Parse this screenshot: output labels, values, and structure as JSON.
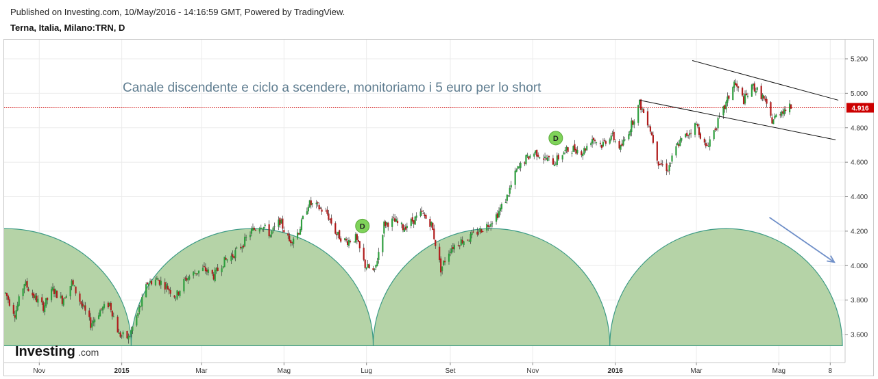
{
  "header": {
    "published": "Published on Investing.com, 10/May/2016 - 14:16:59 GMT, Powered by TradingView.",
    "symbol": "Terna, Italia, Milano:TRN, D"
  },
  "annotation": "Canale discendente e ciclo a scendere, monitoriamo i 5 euro per lo short",
  "logo": {
    "main": "Investing",
    "suffix": ".com"
  },
  "colors": {
    "up": "#2e9e3e",
    "down": "#b01c1c",
    "cycle_fill": "#b5d3a7",
    "cycle_stroke": "#3b9a84",
    "price_line": "#cc0000",
    "arrow": "#6f8fc8",
    "marker": "#7fd35a"
  },
  "chart_data": {
    "type": "candlestick",
    "title": "Terna, Italia, Milano:TRN, D",
    "last_price": "4.916",
    "y_ticks": [
      "5.200",
      "5.000",
      "4.800",
      "4.600",
      "4.400",
      "4.200",
      "4.000",
      "3.800",
      "3.600"
    ],
    "ylim": [
      3.52,
      5.28
    ],
    "x_ticks": [
      {
        "label": "Nov",
        "date": "2014-11-01"
      },
      {
        "label": "2015",
        "date": "2015-01-01"
      },
      {
        "label": "Mar",
        "date": "2015-03-01"
      },
      {
        "label": "Mag",
        "date": "2015-05-01"
      },
      {
        "label": "Lug",
        "date": "2015-07-01"
      },
      {
        "label": "Set",
        "date": "2015-09-01"
      },
      {
        "label": "Nov",
        "date": "2015-11-01"
      },
      {
        "label": "2016",
        "date": "2016-01-01"
      },
      {
        "label": "Mar",
        "date": "2016-03-01"
      },
      {
        "label": "Mag",
        "date": "2016-05-01"
      },
      {
        "label": "8",
        "date": "2016-06-08"
      }
    ],
    "price_path": [
      [
        "2014-10-07",
        3.84
      ],
      [
        "2014-10-14",
        3.72
      ],
      [
        "2014-10-21",
        3.9
      ],
      [
        "2014-10-28",
        3.82
      ],
      [
        "2014-11-04",
        3.76
      ],
      [
        "2014-11-11",
        3.86
      ],
      [
        "2014-11-18",
        3.8
      ],
      [
        "2014-11-25",
        3.9
      ],
      [
        "2014-12-02",
        3.78
      ],
      [
        "2014-12-09",
        3.66
      ],
      [
        "2014-12-16",
        3.74
      ],
      [
        "2014-12-23",
        3.78
      ],
      [
        "2014-12-30",
        3.6
      ],
      [
        "2015-01-06",
        3.58
      ],
      [
        "2015-01-13",
        3.72
      ],
      [
        "2015-01-20",
        3.9
      ],
      [
        "2015-01-27",
        3.92
      ],
      [
        "2015-02-03",
        3.88
      ],
      [
        "2015-02-10",
        3.82
      ],
      [
        "2015-02-17",
        3.92
      ],
      [
        "2015-02-24",
        3.96
      ],
      [
        "2015-03-03",
        3.98
      ],
      [
        "2015-03-10",
        3.94
      ],
      [
        "2015-03-17",
        4.02
      ],
      [
        "2015-03-24",
        4.06
      ],
      [
        "2015-03-31",
        4.12
      ],
      [
        "2015-04-07",
        4.2
      ],
      [
        "2015-04-14",
        4.24
      ],
      [
        "2015-04-21",
        4.18
      ],
      [
        "2015-04-28",
        4.26
      ],
      [
        "2015-05-05",
        4.14
      ],
      [
        "2015-05-12",
        4.2
      ],
      [
        "2015-05-19",
        4.36
      ],
      [
        "2015-05-26",
        4.34
      ],
      [
        "2015-06-02",
        4.3
      ],
      [
        "2015-06-09",
        4.18
      ],
      [
        "2015-06-16",
        4.14
      ],
      [
        "2015-06-23",
        4.16
      ],
      [
        "2015-06-30",
        4.0
      ],
      [
        "2015-07-07",
        3.96
      ],
      [
        "2015-07-14",
        4.24
      ],
      [
        "2015-07-21",
        4.26
      ],
      [
        "2015-07-28",
        4.22
      ],
      [
        "2015-08-04",
        4.26
      ],
      [
        "2015-08-11",
        4.3
      ],
      [
        "2015-08-18",
        4.24
      ],
      [
        "2015-08-25",
        3.98
      ],
      [
        "2015-09-01",
        4.1
      ],
      [
        "2015-09-08",
        4.14
      ],
      [
        "2015-09-15",
        4.16
      ],
      [
        "2015-09-22",
        4.2
      ],
      [
        "2015-09-29",
        4.24
      ],
      [
        "2015-10-06",
        4.3
      ],
      [
        "2015-10-13",
        4.4
      ],
      [
        "2015-10-20",
        4.55
      ],
      [
        "2015-10-27",
        4.62
      ],
      [
        "2015-11-03",
        4.66
      ],
      [
        "2015-11-10",
        4.62
      ],
      [
        "2015-11-17",
        4.6
      ],
      [
        "2015-11-24",
        4.66
      ],
      [
        "2015-12-01",
        4.68
      ],
      [
        "2015-12-08",
        4.66
      ],
      [
        "2015-12-15",
        4.74
      ],
      [
        "2015-12-22",
        4.7
      ],
      [
        "2015-12-29",
        4.76
      ],
      [
        "2016-01-05",
        4.68
      ],
      [
        "2016-01-12",
        4.8
      ],
      [
        "2016-01-19",
        4.94
      ],
      [
        "2016-01-26",
        4.82
      ],
      [
        "2016-02-02",
        4.6
      ],
      [
        "2016-02-09",
        4.56
      ],
      [
        "2016-02-16",
        4.7
      ],
      [
        "2016-02-23",
        4.76
      ],
      [
        "2016-03-01",
        4.82
      ],
      [
        "2016-03-08",
        4.68
      ],
      [
        "2016-03-15",
        4.8
      ],
      [
        "2016-03-22",
        4.92
      ],
      [
        "2016-03-29",
        5.06
      ],
      [
        "2016-04-05",
        4.96
      ],
      [
        "2016-04-12",
        5.04
      ],
      [
        "2016-04-19",
        4.98
      ],
      [
        "2016-04-26",
        4.84
      ],
      [
        "2016-05-03",
        4.9
      ],
      [
        "2016-05-10",
        4.92
      ]
    ],
    "cycle_lows": [
      "2015-01-08",
      "2015-07-06",
      "2015-12-28",
      "2016-06-17"
    ],
    "cycle_peak_price": 4.215,
    "cycle_base_price": 3.535,
    "markers": [
      {
        "label": "D",
        "date": "2015-06-28",
        "price": 4.23
      },
      {
        "label": "D",
        "date": "2015-11-18",
        "price": 4.74
      }
    ],
    "channel_lines": [
      {
        "from": [
          "2016-01-19",
          4.96
        ],
        "to": [
          "2016-06-12",
          4.73
        ]
      },
      {
        "from": [
          "2016-02-27",
          5.19
        ],
        "to": [
          "2016-06-14",
          4.96
        ]
      }
    ],
    "arrow": {
      "from": [
        "2016-04-24",
        4.28
      ],
      "to": [
        "2016-06-11",
        4.02
      ]
    },
    "horizontal_line": 4.916
  }
}
